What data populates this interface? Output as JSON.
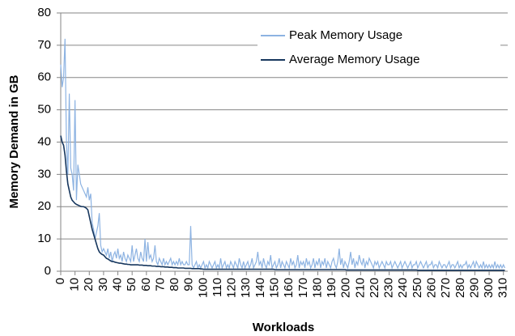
{
  "chart_data": {
    "type": "line",
    "x_label": "Workloads",
    "y_label": "Memory Demand in GB",
    "xlim": [
      0,
      313
    ],
    "ylim": [
      0,
      80
    ],
    "xticks": [
      0,
      10,
      20,
      30,
      40,
      50,
      60,
      70,
      80,
      90,
      100,
      110,
      120,
      130,
      140,
      150,
      160,
      170,
      180,
      190,
      200,
      210,
      220,
      230,
      240,
      250,
      260,
      270,
      280,
      290,
      300,
      310
    ],
    "yticks": [
      0,
      10,
      20,
      30,
      40,
      50,
      60,
      70,
      80
    ],
    "grid": true,
    "legend": "upper right",
    "x": [
      0,
      1,
      2,
      3,
      4,
      5,
      6,
      7,
      8,
      9,
      10,
      11,
      12,
      13,
      14,
      15,
      16,
      17,
      18,
      19,
      20,
      21,
      22,
      23,
      24,
      25,
      26,
      27,
      28,
      29,
      30,
      31,
      32,
      33,
      34,
      35,
      36,
      37,
      38,
      39,
      40,
      41,
      42,
      43,
      44,
      45,
      46,
      47,
      48,
      49,
      50,
      51,
      52,
      53,
      54,
      55,
      56,
      57,
      58,
      59,
      60,
      61,
      62,
      63,
      64,
      65,
      66,
      67,
      68,
      69,
      70,
      71,
      72,
      73,
      74,
      75,
      76,
      77,
      78,
      79,
      80,
      81,
      82,
      83,
      84,
      85,
      86,
      87,
      88,
      89,
      90,
      91,
      92,
      93,
      94,
      95,
      96,
      97,
      98,
      99,
      100,
      101,
      102,
      103,
      104,
      105,
      106,
      107,
      108,
      109,
      110,
      111,
      112,
      113,
      114,
      115,
      116,
      117,
      118,
      119,
      120,
      121,
      122,
      123,
      124,
      125,
      126,
      127,
      128,
      129,
      130,
      131,
      132,
      133,
      134,
      135,
      136,
      137,
      138,
      139,
      140,
      141,
      142,
      143,
      144,
      145,
      146,
      147,
      148,
      149,
      150,
      151,
      152,
      153,
      154,
      155,
      156,
      157,
      158,
      159,
      160,
      161,
      162,
      163,
      164,
      165,
      166,
      167,
      168,
      169,
      170,
      171,
      172,
      173,
      174,
      175,
      176,
      177,
      178,
      179,
      180,
      181,
      182,
      183,
      184,
      185,
      186,
      187,
      188,
      189,
      190,
      191,
      192,
      193,
      194,
      195,
      196,
      197,
      198,
      199,
      200,
      201,
      202,
      203,
      204,
      205,
      206,
      207,
      208,
      209,
      210,
      211,
      212,
      213,
      214,
      215,
      216,
      217,
      218,
      219,
      220,
      221,
      222,
      223,
      224,
      225,
      226,
      227,
      228,
      229,
      230,
      231,
      232,
      233,
      234,
      235,
      236,
      237,
      238,
      239,
      240,
      241,
      242,
      243,
      244,
      245,
      246,
      247,
      248,
      249,
      250,
      251,
      252,
      253,
      254,
      255,
      256,
      257,
      258,
      259,
      260,
      261,
      262,
      263,
      264,
      265,
      266,
      267,
      268,
      269,
      270,
      271,
      272,
      273,
      274,
      275,
      276,
      277,
      278,
      279,
      280,
      281,
      282,
      283,
      284,
      285,
      286,
      287,
      288,
      289,
      290,
      291,
      292,
      293,
      294,
      295,
      296,
      297,
      298,
      299,
      300,
      301,
      302,
      303,
      304,
      305,
      306,
      307,
      308,
      309,
      310,
      311
    ],
    "series": [
      {
        "name": "Peak Memory Usage",
        "color": "#8db3e2",
        "values": [
          64,
          57,
          60,
          72,
          40,
          30,
          55,
          32,
          30,
          25,
          53,
          22,
          33,
          30,
          27,
          26,
          25,
          24,
          23,
          26,
          22,
          24,
          15,
          13,
          10,
          12,
          14,
          18,
          8,
          6,
          7,
          6,
          5,
          7,
          4,
          6,
          3,
          5,
          6,
          4,
          7,
          4,
          5,
          3,
          6,
          4,
          3,
          5,
          4,
          3,
          8,
          3,
          5,
          7,
          4,
          3,
          6,
          4,
          3,
          10,
          3,
          9,
          4,
          5,
          3,
          4,
          8,
          3,
          2,
          4,
          3,
          2,
          4,
          2,
          3,
          2,
          3,
          4,
          2,
          3,
          2,
          3,
          2,
          4,
          2,
          3,
          2,
          2,
          3,
          2,
          2,
          14,
          2,
          1,
          2,
          3,
          1,
          2,
          1,
          2,
          3,
          1,
          2,
          1,
          3,
          2,
          1,
          2,
          3,
          1,
          2,
          1,
          4,
          1,
          2,
          3,
          1,
          2,
          1,
          3,
          2,
          1,
          3,
          2,
          1,
          4,
          2,
          1,
          3,
          1,
          2,
          3,
          1,
          2,
          4,
          1,
          2,
          3,
          6,
          2,
          3,
          1,
          4,
          2,
          1,
          3,
          2,
          5,
          1,
          2,
          3,
          1,
          2,
          4,
          1,
          3,
          2,
          1,
          3,
          2,
          1,
          4,
          2,
          3,
          1,
          2,
          5,
          1,
          3,
          2,
          3,
          1,
          4,
          2,
          3,
          1,
          2,
          4,
          1,
          3,
          2,
          4,
          1,
          3,
          2,
          4,
          1,
          3,
          2,
          1,
          3,
          4,
          2,
          1,
          3,
          7,
          2,
          4,
          1,
          3,
          2,
          1,
          3,
          6,
          2,
          4,
          1,
          3,
          2,
          5,
          3,
          2,
          4,
          1,
          3,
          2,
          4,
          3,
          2,
          1,
          3,
          2,
          3,
          1,
          2,
          3,
          2,
          1,
          3,
          2,
          2,
          3,
          1,
          2,
          3,
          2,
          1,
          2,
          3,
          1,
          2,
          3,
          2,
          1,
          2,
          3,
          1,
          2,
          2,
          3,
          1,
          2,
          3,
          2,
          1,
          2,
          3,
          1,
          2,
          2,
          3,
          1,
          2,
          2,
          1,
          3,
          2,
          1,
          2,
          2,
          1,
          2,
          3,
          1,
          2,
          2,
          1,
          2,
          3,
          1,
          2,
          1,
          2,
          2,
          3,
          1,
          2,
          1,
          2,
          3,
          1,
          3,
          2,
          1,
          2,
          1,
          3,
          1,
          2,
          1,
          2,
          1,
          2,
          1,
          3,
          1,
          2,
          1,
          2,
          1,
          2,
          1
        ]
      },
      {
        "name": "Average Memory Usage",
        "color": "#17375e",
        "values": [
          42,
          40,
          39,
          36,
          31,
          27,
          25,
          23,
          22,
          21.5,
          21,
          20.7,
          20.5,
          20.3,
          20.1,
          20,
          20,
          19.8,
          19.5,
          19,
          17,
          15,
          13,
          11.5,
          10,
          8.5,
          7,
          6,
          5.5,
          5.2,
          5,
          4.5,
          4,
          3.8,
          3.5,
          3.2,
          3,
          3,
          2.8,
          2.7,
          2.6,
          2.5,
          2.5,
          2.4,
          2.3,
          2.2,
          2.2,
          2.1,
          2.1,
          2,
          2,
          2,
          2,
          2,
          2,
          1.9,
          1.9,
          1.9,
          1.8,
          1.8,
          1.8,
          1.7,
          1.7,
          1.7,
          1.6,
          1.6,
          1.6,
          1.5,
          1.5,
          1.5,
          1.4,
          1.4,
          1.4,
          1.3,
          1.3,
          1.3,
          1.2,
          1.2,
          1.2,
          1.1,
          1.1,
          1.1,
          1,
          1,
          1,
          1,
          1,
          0.9,
          0.9,
          0.9,
          0.9,
          0.9,
          0.8,
          0.8,
          0.8,
          0.8,
          0.8,
          0.8,
          0.7,
          0.7,
          0.6,
          0.6,
          0.6,
          0.6,
          0.6,
          0.6,
          0.6,
          0.6,
          0.6,
          0.6,
          0.6,
          0.6,
          0.6,
          0.6,
          0.6,
          0.6,
          0.6,
          0.6,
          0.6,
          0.6,
          0.6,
          0.6,
          0.6,
          0.6,
          0.6,
          0.6,
          0.6,
          0.6,
          0.6,
          0.6,
          0.6,
          0.6,
          0.6,
          0.6,
          0.6,
          0.6,
          0.6,
          0.6,
          0.6,
          0.6,
          0.6,
          0.6,
          0.6,
          0.6,
          0.6,
          0.6,
          0.6,
          0.6,
          0.6,
          0.6,
          0.5,
          0.5,
          0.5,
          0.5,
          0.5,
          0.5,
          0.5,
          0.5,
          0.5,
          0.5,
          0.5,
          0.5,
          0.5,
          0.5,
          0.5,
          0.5,
          0.5,
          0.5,
          0.5,
          0.5,
          0.5,
          0.5,
          0.5,
          0.5,
          0.5,
          0.5,
          0.5,
          0.5,
          0.5,
          0.5,
          0.5,
          0.5,
          0.5,
          0.5,
          0.5,
          0.5,
          0.5,
          0.5,
          0.5,
          0.5,
          0.5,
          0.5,
          0.5,
          0.5,
          0.5,
          0.5,
          0.5,
          0.5,
          0.5,
          0.5,
          0.4,
          0.4,
          0.4,
          0.4,
          0.4,
          0.4,
          0.4,
          0.4,
          0.4,
          0.4,
          0.4,
          0.4,
          0.4,
          0.4,
          0.4,
          0.4,
          0.4,
          0.4,
          0.4,
          0.4,
          0.4,
          0.4,
          0.4,
          0.4,
          0.4,
          0.4,
          0.4,
          0.4,
          0.4,
          0.4,
          0.4,
          0.4,
          0.4,
          0.4,
          0.4,
          0.4,
          0.4,
          0.4,
          0.4,
          0.4,
          0.4,
          0.4,
          0.4,
          0.4,
          0.4,
          0.4,
          0.4,
          0.4,
          0.4,
          0.4,
          0.3,
          0.3,
          0.3,
          0.3,
          0.3,
          0.3,
          0.3,
          0.3,
          0.3,
          0.3,
          0.3,
          0.3,
          0.3,
          0.3,
          0.3,
          0.3,
          0.3,
          0.3,
          0.3,
          0.3,
          0.3,
          0.3,
          0.3,
          0.3,
          0.3,
          0.3,
          0.3,
          0.3,
          0.3,
          0.3,
          0.3,
          0.3,
          0.3,
          0.3,
          0.3,
          0.3,
          0.3,
          0.3,
          0.3,
          0.3,
          0.3,
          0.3,
          0.3,
          0.3,
          0.3,
          0.3,
          0.3,
          0.3,
          0.3,
          0.3,
          0.3,
          0.3,
          0.3,
          0.3,
          0.3,
          0.3,
          0.3,
          0.3,
          0.3,
          0.3,
          0.3,
          0.3
        ]
      }
    ]
  }
}
